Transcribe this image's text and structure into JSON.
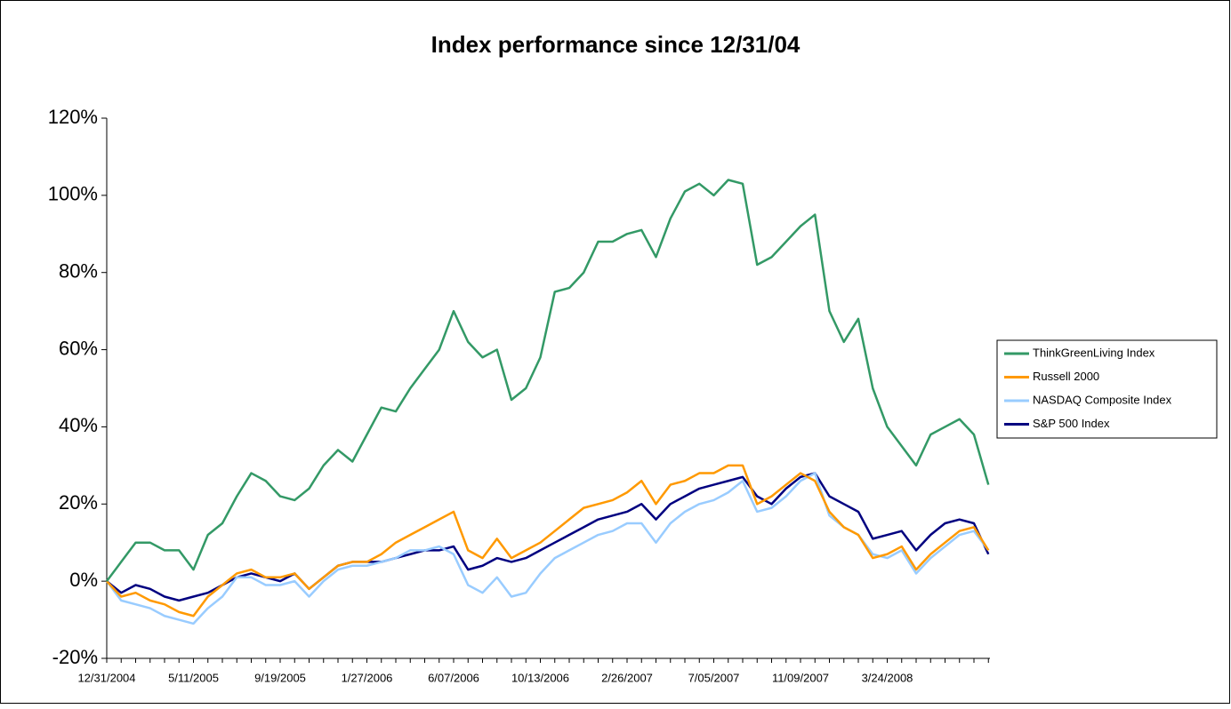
{
  "chart_data": {
    "type": "line",
    "title": "Index performance since 12/31/04",
    "categories": [
      "12/31/2004",
      null,
      null,
      null,
      null,
      null,
      "5/11/2005",
      null,
      null,
      null,
      null,
      null,
      "9/19/2005",
      null,
      null,
      null,
      null,
      null,
      "1/27/2006",
      null,
      null,
      null,
      null,
      null,
      "6/07/2006",
      null,
      null,
      null,
      null,
      null,
      "10/13/2006",
      null,
      null,
      null,
      null,
      null,
      "2/26/2007",
      null,
      null,
      null,
      null,
      null,
      "7/05/2007",
      null,
      null,
      null,
      null,
      null,
      "11/09/2007",
      null,
      null,
      null,
      null,
      null,
      "3/24/2008",
      null,
      null,
      null,
      null,
      null,
      null,
      null
    ],
    "series": [
      {
        "name": "ThinkGreenLiving Index",
        "color": "#339966",
        "values": [
          0,
          5,
          10,
          10,
          8,
          8,
          3,
          12,
          15,
          22,
          28,
          26,
          22,
          21,
          24,
          30,
          34,
          31,
          38,
          45,
          44,
          50,
          55,
          60,
          70,
          62,
          58,
          60,
          47,
          50,
          58,
          75,
          76,
          80,
          88,
          88,
          90,
          91,
          84,
          94,
          101,
          103,
          100,
          104,
          103,
          82,
          84,
          88,
          92,
          95,
          70,
          62,
          68,
          50,
          40,
          35,
          30,
          38,
          40,
          42,
          38,
          25
        ]
      },
      {
        "name": "Russell 2000",
        "color": "#ff9900",
        "values": [
          0,
          -4,
          -3,
          -5,
          -6,
          -8,
          -9,
          -4,
          -1,
          2,
          3,
          1,
          1,
          2,
          -2,
          1,
          4,
          5,
          5,
          7,
          10,
          12,
          14,
          16,
          18,
          8,
          6,
          11,
          6,
          8,
          10,
          13,
          16,
          19,
          20,
          21,
          23,
          26,
          20,
          25,
          26,
          28,
          28,
          30,
          30,
          20,
          22,
          25,
          28,
          26,
          18,
          14,
          12,
          6,
          7,
          9,
          3,
          7,
          10,
          13,
          14,
          8
        ]
      },
      {
        "name": "NASDAQ Composite Index",
        "color": "#99ccff",
        "values": [
          0,
          -5,
          -6,
          -7,
          -9,
          -10,
          -11,
          -7,
          -4,
          1,
          1,
          -1,
          -1,
          0,
          -4,
          0,
          3,
          4,
          4,
          5,
          6,
          8,
          8,
          9,
          7,
          -1,
          -3,
          1,
          -4,
          -3,
          2,
          6,
          8,
          10,
          12,
          13,
          15,
          15,
          10,
          15,
          18,
          20,
          21,
          23,
          26,
          18,
          19,
          22,
          26,
          28,
          17,
          14,
          12,
          7,
          6,
          8,
          2,
          6,
          9,
          12,
          13,
          8
        ]
      },
      {
        "name": "S&P 500 Index",
        "color": "#000080",
        "values": [
          0,
          -3,
          -1,
          -2,
          -4,
          -5,
          -4,
          -3,
          -1,
          1,
          2,
          1,
          0,
          2,
          -2,
          1,
          4,
          5,
          5,
          5,
          6,
          7,
          8,
          8,
          9,
          3,
          4,
          6,
          5,
          6,
          8,
          10,
          12,
          14,
          16,
          17,
          18,
          20,
          16,
          20,
          22,
          24,
          25,
          26,
          27,
          22,
          20,
          24,
          27,
          28,
          22,
          20,
          18,
          11,
          12,
          13,
          8,
          12,
          15,
          16,
          15,
          7
        ]
      }
    ],
    "ylim": [
      -20,
      120
    ],
    "yticks": [
      {
        "value": -20,
        "label": "-20%"
      },
      {
        "value": 0,
        "label": "0%"
      },
      {
        "value": 20,
        "label": "20%"
      },
      {
        "value": 40,
        "label": "40%"
      },
      {
        "value": 60,
        "label": "60%"
      },
      {
        "value": 80,
        "label": "80%"
      },
      {
        "value": 100,
        "label": "100%"
      },
      {
        "value": 120,
        "label": "120%"
      }
    ],
    "legend": "right"
  }
}
